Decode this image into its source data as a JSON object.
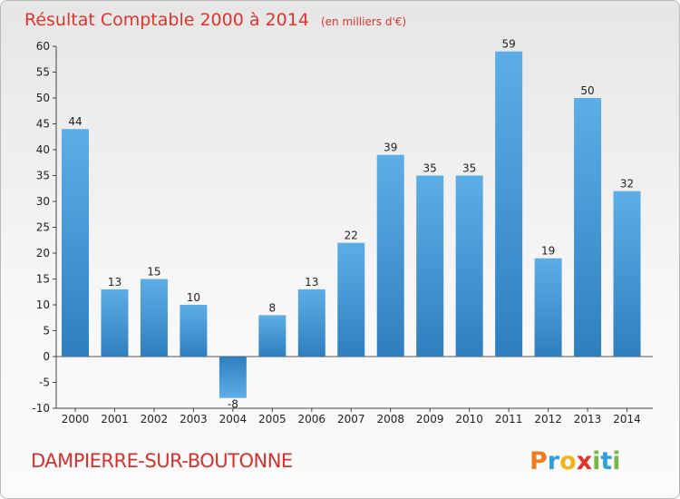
{
  "chart_data": {
    "type": "bar",
    "title": "Résultat Comptable 2000 à 2014",
    "subtitle": "(en milliers d'€)",
    "categories": [
      "2000",
      "2001",
      "2002",
      "2003",
      "2004",
      "2005",
      "2006",
      "2007",
      "2008",
      "2009",
      "2010",
      "2011",
      "2012",
      "2013",
      "2014"
    ],
    "values": [
      44,
      13,
      15,
      10,
      -8,
      8,
      13,
      22,
      39,
      35,
      35,
      59,
      19,
      50,
      32
    ],
    "yticks": [
      60,
      55,
      50,
      45,
      40,
      35,
      30,
      25,
      20,
      15,
      10,
      5,
      0,
      -5,
      -10
    ],
    "ylim": [
      -10,
      60
    ],
    "xlabel": "",
    "ylabel": "",
    "grid": false,
    "bar_color": "#3a8fd4"
  },
  "commune": "DAMPIERRE-SUR-BOUTONNE",
  "logo": {
    "text": "Proxiti",
    "letters": [
      "P",
      "r",
      "o",
      "x",
      "i",
      "t",
      "i"
    ],
    "colors": [
      "#f07b1d",
      "#2f9fd8",
      "#f3b31a",
      "#e2332b",
      "#7ab648",
      "#2f9fd8",
      "#7ab648"
    ]
  }
}
